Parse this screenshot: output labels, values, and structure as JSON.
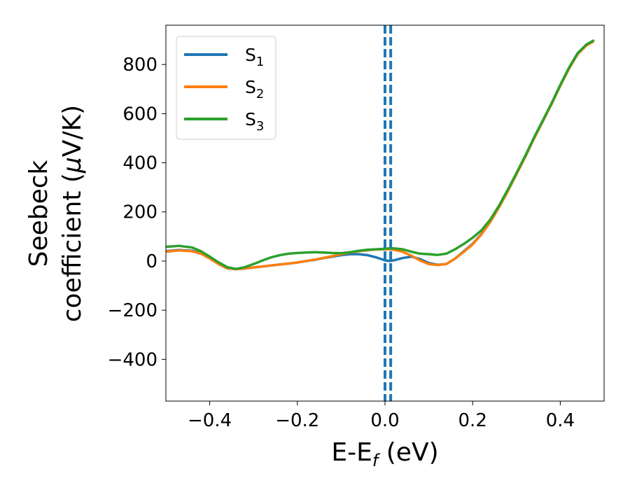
{
  "chart_data": {
    "type": "line",
    "xlabel": {
      "base": "E-E",
      "sub": "f",
      "tail": " (eV)"
    },
    "ylabel": {
      "line1": "Seebeck",
      "line2_prefix": "coefficient  (",
      "mu": "μ",
      "line2_suffix": "V/K)"
    },
    "xlim": [
      -0.5,
      0.5
    ],
    "ylim": [
      -570,
      960
    ],
    "xticks": [
      -0.4,
      -0.2,
      0.0,
      0.2,
      0.4
    ],
    "xtick_labels": [
      "−0.4",
      "−0.2",
      "0.0",
      "0.2",
      "0.4"
    ],
    "yticks": [
      -400,
      -200,
      0,
      200,
      400,
      600,
      800
    ],
    "ytick_labels": [
      "−400",
      "−200",
      "0",
      "200",
      "400",
      "600",
      "800"
    ],
    "grid": false,
    "legend_position": "top-left",
    "vertical_lines": [
      {
        "x": 0.0,
        "color": "#000000",
        "style": "dashed"
      },
      {
        "x": 0.0,
        "color": "#1f77b4",
        "style": "dashed"
      },
      {
        "x": 0.013,
        "color": "#1f77b4",
        "style": "dashed"
      }
    ],
    "series": [
      {
        "base": "S",
        "sub": "1",
        "color": "#1f77b4",
        "x": [
          -0.5,
          -0.47,
          -0.44,
          -0.42,
          -0.4,
          -0.38,
          -0.36,
          -0.34,
          -0.32,
          -0.3,
          -0.28,
          -0.26,
          -0.24,
          -0.22,
          -0.2,
          -0.18,
          -0.16,
          -0.14,
          -0.12,
          -0.1,
          -0.08,
          -0.06,
          -0.04,
          -0.02,
          0.0,
          0.01,
          0.02,
          0.04,
          0.06,
          0.08,
          0.1,
          0.12,
          0.14,
          0.16,
          0.18,
          0.2,
          0.22,
          0.24,
          0.26,
          0.28,
          0.3,
          0.32,
          0.34,
          0.36,
          0.38,
          0.4,
          0.42,
          0.44,
          0.46,
          0.475
        ],
        "y": [
          40,
          45,
          42,
          32,
          12,
          -10,
          -28,
          -33,
          -30,
          -26,
          -22,
          -18,
          -14,
          -10,
          -6,
          0,
          5,
          12,
          18,
          24,
          28,
          28,
          24,
          15,
          3,
          0,
          3,
          12,
          18,
          8,
          -8,
          -15,
          -12,
          10,
          40,
          70,
          110,
          160,
          220,
          285,
          355,
          425,
          500,
          570,
          640,
          715,
          785,
          845,
          880,
          895
        ]
      },
      {
        "base": "S",
        "sub": "2",
        "color": "#ff7f0e",
        "x": [
          -0.5,
          -0.47,
          -0.44,
          -0.42,
          -0.4,
          -0.38,
          -0.36,
          -0.34,
          -0.32,
          -0.3,
          -0.28,
          -0.26,
          -0.24,
          -0.22,
          -0.2,
          -0.18,
          -0.16,
          -0.14,
          -0.12,
          -0.1,
          -0.08,
          -0.06,
          -0.04,
          -0.02,
          0.0,
          0.01,
          0.02,
          0.04,
          0.06,
          0.08,
          0.1,
          0.12,
          0.14,
          0.16,
          0.18,
          0.2,
          0.22,
          0.24,
          0.26,
          0.28,
          0.3,
          0.32,
          0.34,
          0.36,
          0.38,
          0.4,
          0.42,
          0.44,
          0.46,
          0.475
        ],
        "y": [
          38,
          43,
          40,
          30,
          10,
          -12,
          -30,
          -33,
          -30,
          -26,
          -22,
          -18,
          -14,
          -10,
          -6,
          0,
          6,
          13,
          20,
          28,
          35,
          40,
          44,
          47,
          48,
          48,
          46,
          38,
          22,
          2,
          -12,
          -16,
          -12,
          10,
          38,
          68,
          108,
          158,
          218,
          283,
          353,
          423,
          498,
          568,
          638,
          713,
          783,
          843,
          878,
          893
        ]
      },
      {
        "base": "S",
        "sub": "3",
        "color": "#2ca02c",
        "x": [
          -0.5,
          -0.47,
          -0.44,
          -0.42,
          -0.4,
          -0.38,
          -0.36,
          -0.34,
          -0.32,
          -0.3,
          -0.28,
          -0.26,
          -0.24,
          -0.22,
          -0.2,
          -0.18,
          -0.16,
          -0.14,
          -0.12,
          -0.1,
          -0.08,
          -0.06,
          -0.04,
          -0.02,
          0.0,
          0.01,
          0.02,
          0.04,
          0.06,
          0.08,
          0.1,
          0.12,
          0.14,
          0.16,
          0.18,
          0.2,
          0.22,
          0.24,
          0.26,
          0.28,
          0.3,
          0.32,
          0.34,
          0.36,
          0.38,
          0.4,
          0.42,
          0.44,
          0.46,
          0.475
        ],
        "y": [
          58,
          62,
          55,
          40,
          18,
          -5,
          -25,
          -32,
          -25,
          -12,
          2,
          15,
          24,
          30,
          33,
          35,
          36,
          35,
          33,
          32,
          36,
          42,
          46,
          48,
          50,
          52,
          52,
          48,
          38,
          30,
          28,
          25,
          30,
          48,
          70,
          95,
          125,
          168,
          225,
          290,
          358,
          428,
          502,
          572,
          642,
          717,
          787,
          847,
          882,
          897
        ]
      }
    ]
  }
}
